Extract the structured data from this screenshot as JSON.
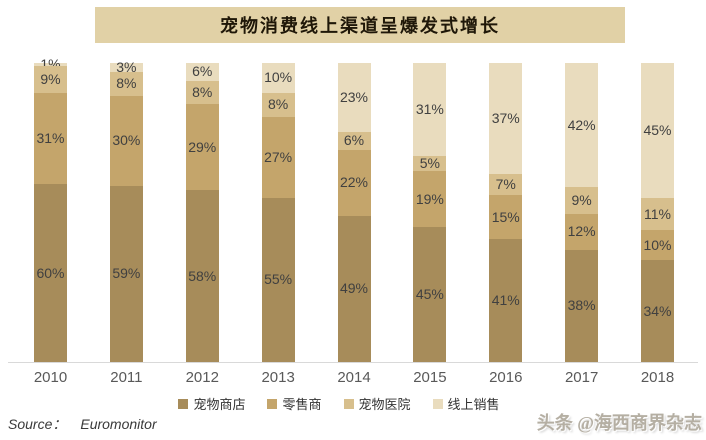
{
  "title": "宠物消费线上渠道呈爆发式增长",
  "source": {
    "prefix": "Source：",
    "name": "Euromonitor"
  },
  "watermark": "头条 @海西商界杂志",
  "colors": {
    "banner_bg": "#E1D1A6",
    "axis_line": "#D9D9D9",
    "value_label": "#404040",
    "axis_label": "#595959"
  },
  "chart_data": {
    "type": "bar",
    "stacked": true,
    "percent_stacked": true,
    "title": "宠物消费线上渠道呈爆发式增长",
    "categories": [
      "2010",
      "2011",
      "2012",
      "2013",
      "2014",
      "2015",
      "2016",
      "2017",
      "2018"
    ],
    "series": [
      {
        "name": "宠物商店",
        "color": "#A78C5A",
        "values": [
          60,
          59,
          58,
          55,
          49,
          45,
          41,
          38,
          34
        ]
      },
      {
        "name": "零售商",
        "color": "#C4A56B",
        "values": [
          31,
          30,
          29,
          27,
          22,
          19,
          15,
          12,
          10
        ]
      },
      {
        "name": "宠物医院",
        "color": "#D7BF8D",
        "values": [
          9,
          8,
          8,
          8,
          6,
          5,
          7,
          9,
          11
        ]
      },
      {
        "name": "线上销售",
        "color": "#E9DCBE",
        "values": [
          1,
          3,
          6,
          10,
          23,
          31,
          37,
          42,
          45
        ]
      }
    ],
    "value_suffix": "%",
    "ylim": [
      0,
      100
    ],
    "grid": false,
    "legend_position": "bottom",
    "xlabel": "",
    "ylabel": ""
  }
}
